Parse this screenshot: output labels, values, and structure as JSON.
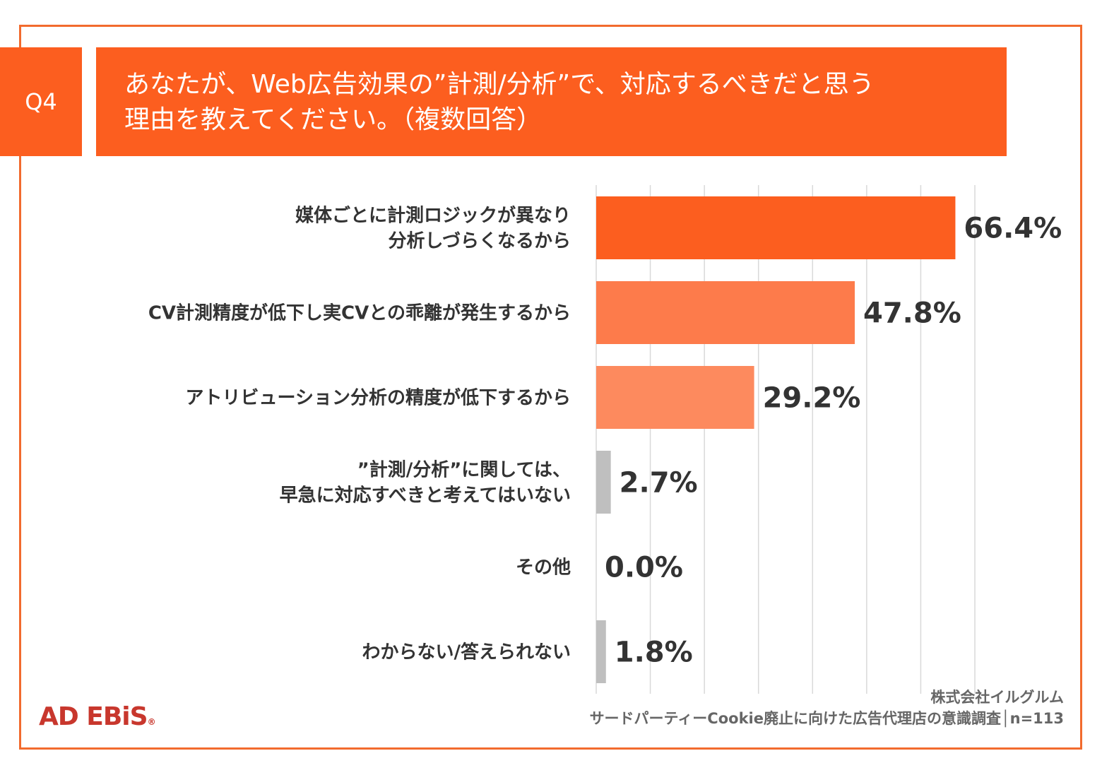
{
  "header": {
    "badge": "Q4",
    "title_line1": "あなたが、Web広告効果の”計測/分析”で、対応するべきだと思う",
    "title_line2": "理由を教えてください。（複数回答）"
  },
  "chart_data": {
    "type": "bar",
    "orientation": "horizontal",
    "categories": [
      [
        "媒体ごとに計測ロジックが異なり",
        "分析しづらくなるから"
      ],
      [
        "CV計測精度が低下し実CVとの乖離が発生するから"
      ],
      [
        "アトリビューション分析の精度が低下するから"
      ],
      [
        "”計測/分析”に関しては、",
        "早急に対応すべきと考えてはいない"
      ],
      [
        "その他"
      ],
      [
        "わからない/答えられない"
      ]
    ],
    "values": [
      66.4,
      47.8,
      29.2,
      2.7,
      0.0,
      1.8
    ],
    "value_labels": [
      "66.4%",
      "47.8%",
      "29.2%",
      "2.7%",
      "0.0%",
      "1.8%"
    ],
    "bar_colors": [
      "#fc5e1f",
      "#fd7b4b",
      "#fd8a5e",
      "#bfbfbf",
      "#bfbfbf",
      "#bfbfbf"
    ],
    "xlim": [
      0,
      70
    ],
    "grid": true
  },
  "footer": {
    "logo_text": "AD EBiS",
    "logo_mark": "®",
    "company": "株式会社イルグルム",
    "source": "サードパーティーCookie廃止に向けた広告代理店の意識調査│n=113"
  }
}
